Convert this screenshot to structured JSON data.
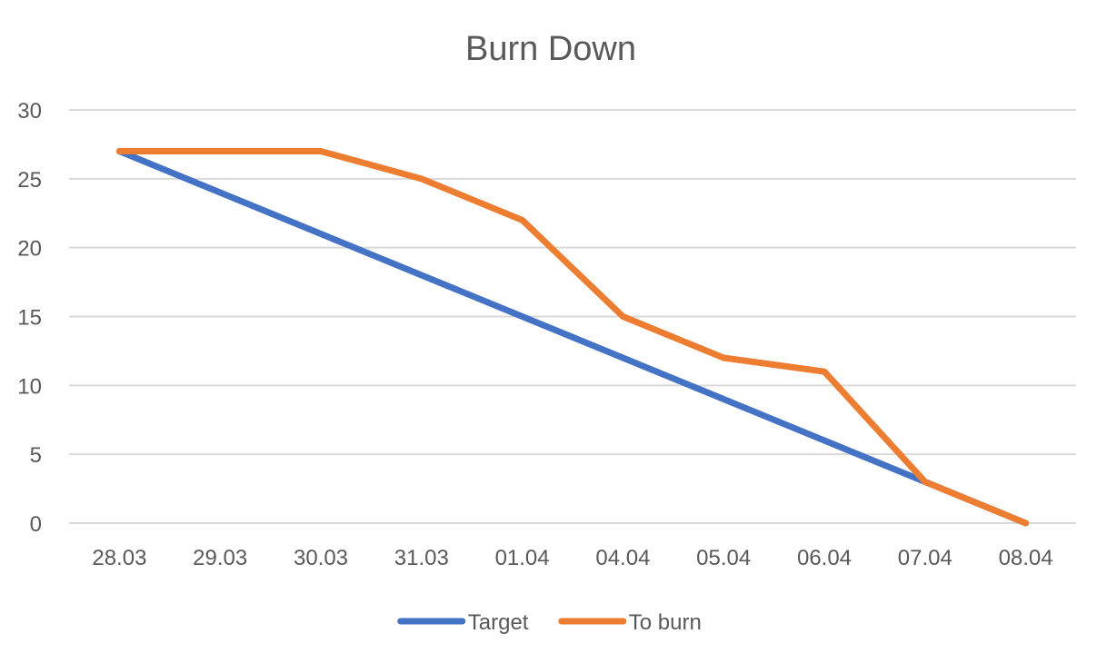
{
  "chart_data": {
    "type": "line",
    "title": "Burn Down",
    "xlabel": "",
    "ylabel": "",
    "categories": [
      "28.03",
      "29.03",
      "30.03",
      "31.03",
      "01.04",
      "04.04",
      "05.04",
      "06.04",
      "07.04",
      "08.04"
    ],
    "ylim": [
      0,
      30
    ],
    "yticks": [
      0,
      5,
      10,
      15,
      20,
      25,
      30
    ],
    "grid": true,
    "legend_position": "bottom",
    "series": [
      {
        "name": "Target",
        "color": "#4472c4",
        "values": [
          27,
          24,
          21,
          18,
          15,
          12,
          9,
          6,
          3,
          0
        ]
      },
      {
        "name": "To burn",
        "color": "#ed7d31",
        "values": [
          27,
          27,
          27,
          25,
          22,
          15,
          12,
          11,
          3,
          0
        ]
      }
    ]
  }
}
